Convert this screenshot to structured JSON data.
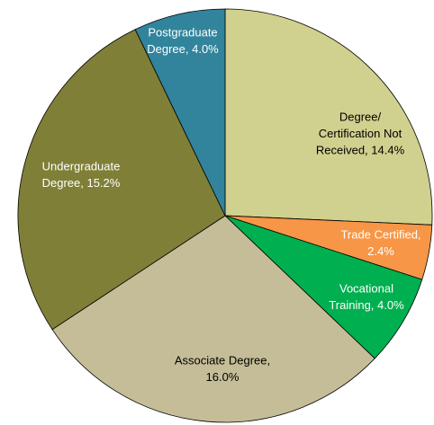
{
  "chart_data": {
    "type": "pie",
    "values": [
      14.4,
      2.4,
      4.0,
      16.0,
      15.2,
      4.0
    ],
    "value_labels": [
      [
        "Degree/",
        "Certification Not",
        "Received, 14.4%"
      ],
      [
        "Trade Certified,",
        "2.4%"
      ],
      [
        "Vocational",
        "Training, 4.0%"
      ],
      [
        "Associate Degree,",
        "16.0%"
      ],
      [
        "Undergraduate",
        "Degree, 15.2%"
      ],
      [
        "Postgraduate",
        "Degree, 4.0%"
      ]
    ],
    "colors": [
      "#d0d18e",
      "#f79646",
      "#00b050",
      "#c4bd97",
      "#7f7f37",
      "#31849b"
    ],
    "label_colors": [
      "#000000",
      "#ffffff",
      "#ffffff",
      "#000000",
      "#ffffff",
      "#ffffff"
    ]
  }
}
